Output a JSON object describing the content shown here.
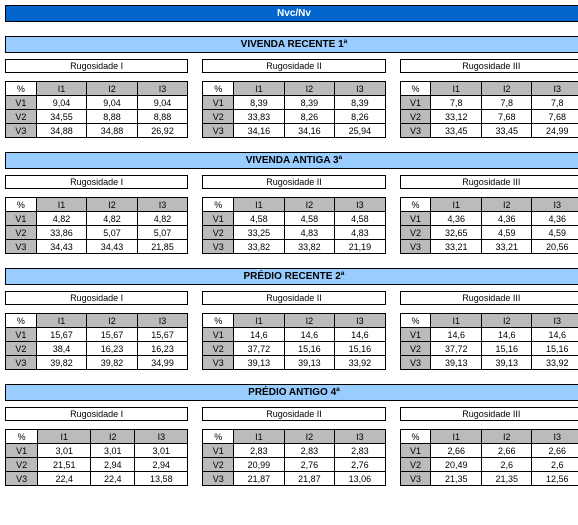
{
  "main": "Nvc/Nv",
  "sections": [
    {
      "title": "VIVENDA RECENTE 1ª",
      "blocks": [
        {
          "label": "Rugosidade I",
          "rows": [
            [
              "9,04",
              "9,04",
              "9,04"
            ],
            [
              "34,55",
              "8,88",
              "8,88"
            ],
            [
              "34,88",
              "34,88",
              "26,92"
            ]
          ]
        },
        {
          "label": "Rugosidade II",
          "rows": [
            [
              "8,39",
              "8,39",
              "8,39"
            ],
            [
              "33,83",
              "8,26",
              "8,26"
            ],
            [
              "34,16",
              "34,16",
              "25,94"
            ]
          ]
        },
        {
          "label": "Rugosidade III",
          "rows": [
            [
              "7,8",
              "7,8",
              "7,8"
            ],
            [
              "33,12",
              "7,68",
              "7,68"
            ],
            [
              "33,45",
              "33,45",
              "24,99"
            ]
          ]
        }
      ]
    },
    {
      "title": "VIVENDA ANTIGA 3ª",
      "blocks": [
        {
          "label": "Rugosidade I",
          "rows": [
            [
              "4,82",
              "4,82",
              "4,82"
            ],
            [
              "33,86",
              "5,07",
              "5,07"
            ],
            [
              "34,43",
              "34,43",
              "21,85"
            ]
          ]
        },
        {
          "label": "Rugosidade II",
          "rows": [
            [
              "4,58",
              "4,58",
              "4,58"
            ],
            [
              "33,25",
              "4,83",
              "4,83"
            ],
            [
              "33,82",
              "33,82",
              "21,19"
            ]
          ]
        },
        {
          "label": "Rugosidade III",
          "rows": [
            [
              "4,36",
              "4,36",
              "4,36"
            ],
            [
              "32,65",
              "4,59",
              "4,59"
            ],
            [
              "33,21",
              "33,21",
              "20,56"
            ]
          ]
        }
      ]
    },
    {
      "title": "PRÉDIO RECENTE 2ª",
      "blocks": [
        {
          "label": "Rugosidade I",
          "rows": [
            [
              "15,67",
              "15,67",
              "15,67"
            ],
            [
              "38,4",
              "16,23",
              "16,23"
            ],
            [
              "39,82",
              "39,82",
              "34,99"
            ]
          ]
        },
        {
          "label": "Rugosidade II",
          "rows": [
            [
              "14,6",
              "14,6",
              "14,6"
            ],
            [
              "37,72",
              "15,16",
              "15,16"
            ],
            [
              "39,13",
              "39,13",
              "33,92"
            ]
          ]
        },
        {
          "label": "Rugosidade III",
          "rows": [
            [
              "14,6",
              "14,6",
              "14,6"
            ],
            [
              "37,72",
              "15,16",
              "15,16"
            ],
            [
              "39,13",
              "39,13",
              "33,92"
            ]
          ]
        }
      ]
    },
    {
      "title": "PRÉDIO ANTIGO 4ª",
      "blocks": [
        {
          "label": "Rugosidade I",
          "rows": [
            [
              "3,01",
              "3,01",
              "3,01"
            ],
            [
              "21,51",
              "2,94",
              "2,94"
            ],
            [
              "22,4",
              "22,4",
              "13,58"
            ]
          ]
        },
        {
          "label": "Rugosidade II",
          "rows": [
            [
              "2,83",
              "2,83",
              "2,83"
            ],
            [
              "20,99",
              "2,76",
              "2,76"
            ],
            [
              "21,87",
              "21,87",
              "13,06"
            ]
          ]
        },
        {
          "label": "Rugosidade III",
          "rows": [
            [
              "2,66",
              "2,66",
              "2,66"
            ],
            [
              "20,49",
              "2,6",
              "2,6"
            ],
            [
              "21,35",
              "21,35",
              "12,56"
            ]
          ]
        }
      ]
    }
  ],
  "cols": [
    "I1",
    "I2",
    "I3"
  ],
  "rhs": [
    "V1",
    "V2",
    "V3"
  ],
  "pct": "%"
}
